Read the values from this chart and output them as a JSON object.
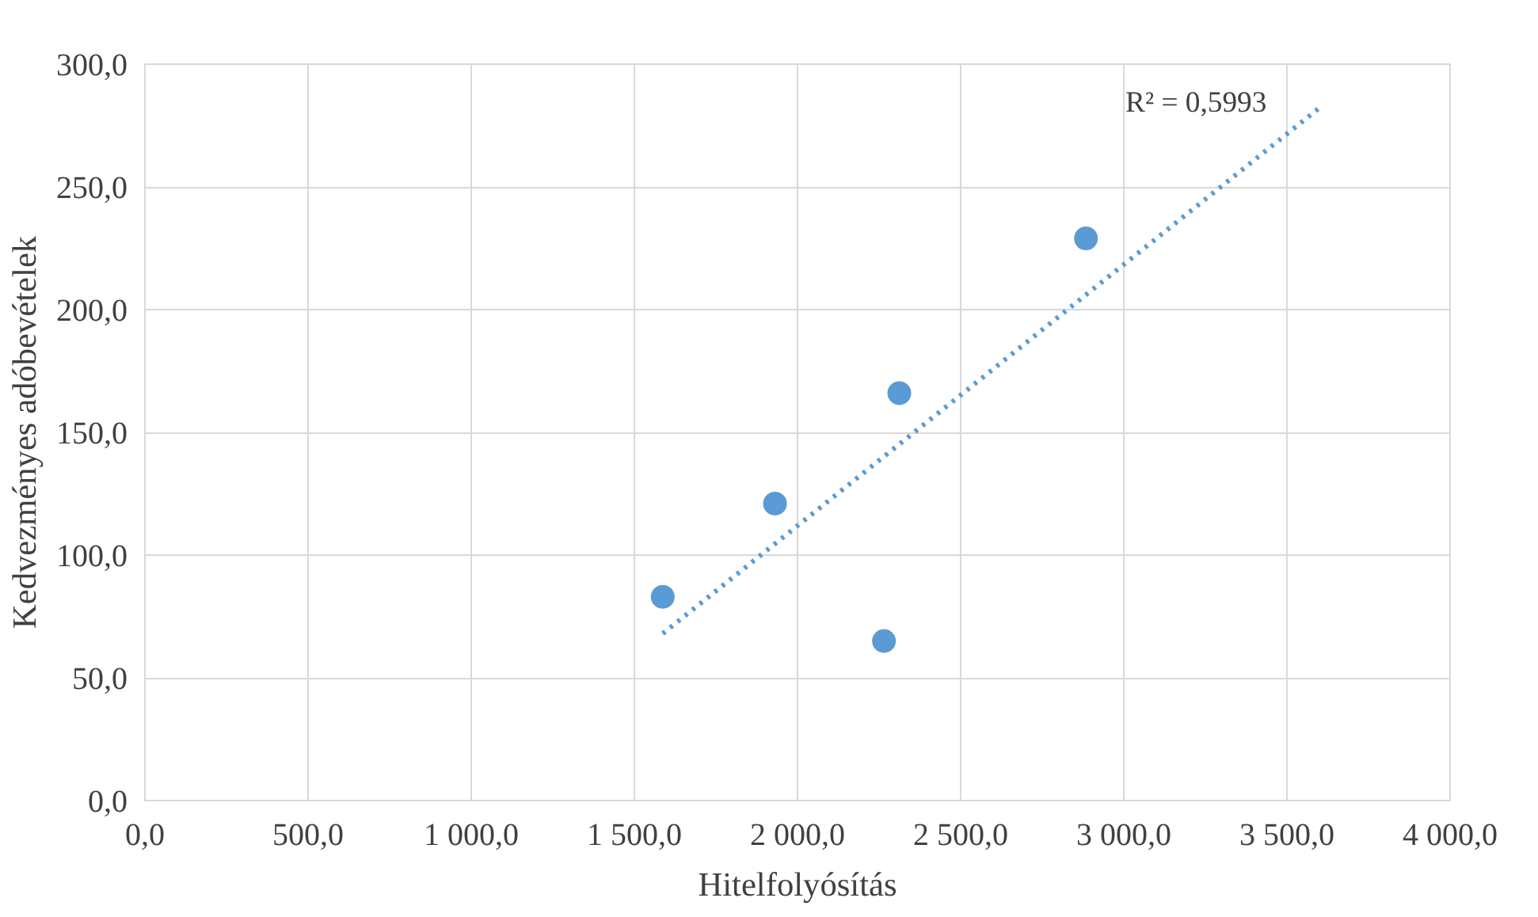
{
  "chart_data": {
    "type": "scatter",
    "xlabel": "Hitelfolyósítás",
    "ylabel": "Kedvezményes adóbevételek",
    "xlim": [
      0,
      4000
    ],
    "ylim": [
      0,
      300
    ],
    "xticks": [
      {
        "value": 0,
        "label": "0,0"
      },
      {
        "value": 500,
        "label": "500,0"
      },
      {
        "value": 1000,
        "label": "1 000,0"
      },
      {
        "value": 1500,
        "label": "1 500,0"
      },
      {
        "value": 2000,
        "label": "2 000,0"
      },
      {
        "value": 2500,
        "label": "2 500,0"
      },
      {
        "value": 3000,
        "label": "3 000,0"
      },
      {
        "value": 3500,
        "label": "3 500,0"
      },
      {
        "value": 4000,
        "label": "4 000,0"
      }
    ],
    "yticks": [
      {
        "value": 0,
        "label": "0,0"
      },
      {
        "value": 50,
        "label": "50,0"
      },
      {
        "value": 100,
        "label": "100,0"
      },
      {
        "value": 150,
        "label": "150,0"
      },
      {
        "value": 200,
        "label": "200,0"
      },
      {
        "value": 250,
        "label": "250,0"
      },
      {
        "value": 300,
        "label": "300,0"
      }
    ],
    "grid": true,
    "marker": "circle",
    "annotations": [
      "R² = 0,5993"
    ],
    "series": [
      {
        "color": "#5b9bd5",
        "x": [
          1587,
          1931,
          2312,
          2265,
          2884
        ],
        "values": [
          83,
          121,
          166,
          65,
          229
        ]
      },
      {
        "type": "line",
        "color": "#5b9bd5",
        "line_style": "dotted",
        "marker": "none",
        "x": [
          1587,
          3598
        ],
        "values": [
          68,
          282
        ]
      }
    ]
  }
}
